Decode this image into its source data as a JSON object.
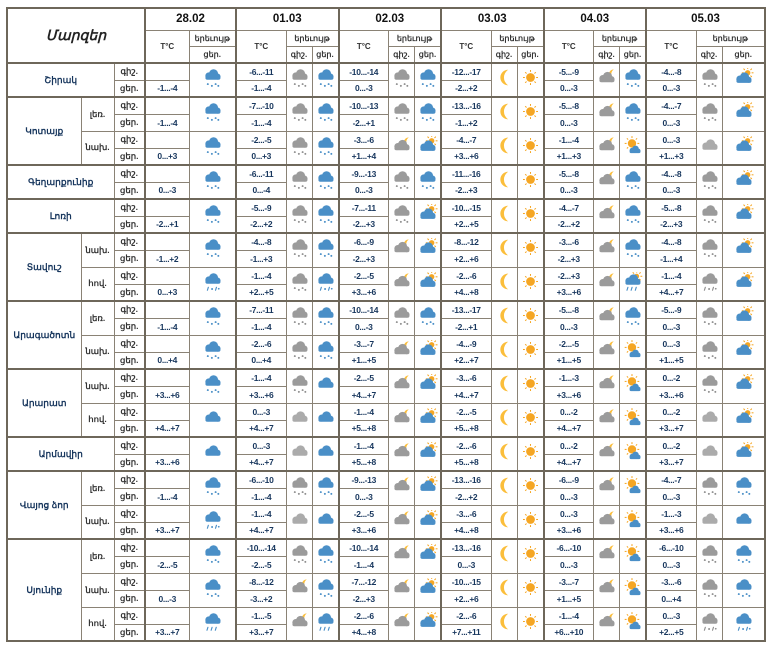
{
  "header": {
    "regions_label": "Մարզեր",
    "temp_label": "T°C",
    "phenomenon_label": "երեւույթ",
    "night_label": "գիշ.",
    "day_label": "ցեր.",
    "dates": [
      "28.02",
      "01.03",
      "02.03",
      "03.03",
      "04.03",
      "05.03"
    ]
  },
  "colors": {
    "border": "#8a8275",
    "border_heavy": "#6e675a",
    "temp_text": "#17365d",
    "cloud_blue": "#4A8FC7",
    "cloud_gray": "#9B9B9B",
    "sun_yellow": "#F5A623",
    "moon_yellow": "#FBBE3B"
  },
  "table": {
    "rows": [
      {
        "region": "Շիրակ",
        "zone": "",
        "dates": [
          {
            "t_night": "",
            "t_day": "-1...-4",
            "icon_night": "",
            "icon_day": "snow_blue"
          },
          {
            "t_night": "-6...-11",
            "t_day": "-1...-4",
            "icon_night": "snow_gray",
            "icon_day": "snow_blue"
          },
          {
            "t_night": "-10...-14",
            "t_day": "0...-3",
            "icon_night": "snow_gray",
            "icon_day": "snow_blue"
          },
          {
            "t_night": "-12...-17",
            "t_day": "-2...+2",
            "icon_night": "moon",
            "icon_day": "sun"
          },
          {
            "t_night": "-5...-9",
            "t_day": "0...-3",
            "icon_night": "cloud_moon",
            "icon_day": "snow_blue"
          },
          {
            "t_night": "-4...-8",
            "t_day": "0...-3",
            "icon_night": "snow_gray",
            "icon_day": "cloud_sun"
          }
        ]
      },
      {
        "region": "Կոտայք",
        "zone": "լեռ.",
        "dates": [
          {
            "t_night": "",
            "t_day": "-1...-4",
            "icon_night": "",
            "icon_day": "snow_blue"
          },
          {
            "t_night": "-7...-10",
            "t_day": "-1...-4",
            "icon_night": "snow_gray",
            "icon_day": "snow_blue"
          },
          {
            "t_night": "-10...-13",
            "t_day": "-2...+1",
            "icon_night": "snow_gray",
            "icon_day": "snow_blue"
          },
          {
            "t_night": "-13...-16",
            "t_day": "-1...+2",
            "icon_night": "moon",
            "icon_day": "sun"
          },
          {
            "t_night": "-5...-8",
            "t_day": "0...-3",
            "icon_night": "cloud_moon",
            "icon_day": "snow_blue"
          },
          {
            "t_night": "-4...-7",
            "t_day": "0...-3",
            "icon_night": "snow_gray",
            "icon_day": "cloud_sun"
          }
        ]
      },
      {
        "region": "Կոտայք",
        "zone": "նախ.",
        "dates": [
          {
            "t_night": "",
            "t_day": "0...+3",
            "icon_night": "",
            "icon_day": "snow_blue"
          },
          {
            "t_night": "-2...-5",
            "t_day": "0...+3",
            "icon_night": "snow_gray",
            "icon_day": "snow_blue"
          },
          {
            "t_night": "-3...-6",
            "t_day": "+1...+4",
            "icon_night": "cloud_moon",
            "icon_day": "cloud_sun"
          },
          {
            "t_night": "-4...-7",
            "t_day": "+3...+6",
            "icon_night": "moon",
            "icon_day": "sun"
          },
          {
            "t_night": "-1...-4",
            "t_day": "+1...+3",
            "icon_night": "cloud_moon",
            "icon_day": "sun_cloud"
          },
          {
            "t_night": "0...-3",
            "t_day": "+1...+3",
            "icon_night": "cloud_gray",
            "icon_day": "cloud_sun"
          }
        ]
      },
      {
        "region": "Գեղարքունիք",
        "zone": "",
        "dates": [
          {
            "t_night": "",
            "t_day": "0...-3",
            "icon_night": "",
            "icon_day": "snow_blue"
          },
          {
            "t_night": "-6...-11",
            "t_day": "0...-4",
            "icon_night": "snow_gray",
            "icon_day": "snow_blue"
          },
          {
            "t_night": "-9...-13",
            "t_day": "0...-3",
            "icon_night": "snow_gray",
            "icon_day": "snow_blue"
          },
          {
            "t_night": "-11...-16",
            "t_day": "-2...+3",
            "icon_night": "moon",
            "icon_day": "sun"
          },
          {
            "t_night": "-5...-8",
            "t_day": "0...-3",
            "icon_night": "cloud_moon",
            "icon_day": "snow_blue"
          },
          {
            "t_night": "-4...-8",
            "t_day": "0...-3",
            "icon_night": "snow_gray",
            "icon_day": "cloud_sun"
          }
        ]
      },
      {
        "region": "Լոռի",
        "zone": "",
        "dates": [
          {
            "t_night": "",
            "t_day": "-2...+1",
            "icon_night": "",
            "icon_day": "snow_blue"
          },
          {
            "t_night": "-5...-9",
            "t_day": "-2...+2",
            "icon_night": "snow_gray",
            "icon_day": "snow_blue"
          },
          {
            "t_night": "-7...-11",
            "t_day": "-2...+3",
            "icon_night": "snow_gray",
            "icon_day": "cloud_sun"
          },
          {
            "t_night": "-10...-15",
            "t_day": "+2...+5",
            "icon_night": "moon",
            "icon_day": "sun"
          },
          {
            "t_night": "-4...-7",
            "t_day": "-2...+2",
            "icon_night": "cloud_moon",
            "icon_day": "snow_blue"
          },
          {
            "t_night": "-5...-8",
            "t_day": "-2...+3",
            "icon_night": "snow_gray",
            "icon_day": "cloud_sun"
          }
        ]
      },
      {
        "region": "Տավուշ",
        "zone": "նախ.",
        "dates": [
          {
            "t_night": "",
            "t_day": "-1...+2",
            "icon_night": "",
            "icon_day": "snow_blue"
          },
          {
            "t_night": "-4...-8",
            "t_day": "-1...+3",
            "icon_night": "snow_gray",
            "icon_day": "snow_blue"
          },
          {
            "t_night": "-6...-9",
            "t_day": "-2...+3",
            "icon_night": "cloud_moon",
            "icon_day": "cloud_sun"
          },
          {
            "t_night": "-8...-12",
            "t_day": "+2...+6",
            "icon_night": "moon",
            "icon_day": "sun"
          },
          {
            "t_night": "-3...-6",
            "t_day": "-2...+3",
            "icon_night": "cloud_moon",
            "icon_day": "snow_blue"
          },
          {
            "t_night": "-4...-8",
            "t_day": "-1...+4",
            "icon_night": "snow_gray",
            "icon_day": "cloud_sun"
          }
        ]
      },
      {
        "region": "Տավուշ",
        "zone": "հով.",
        "dates": [
          {
            "t_night": "",
            "t_day": "0...+3",
            "icon_night": "",
            "icon_day": "sleet_blue"
          },
          {
            "t_night": "-1...-4",
            "t_day": "+2...+5",
            "icon_night": "snow_gray",
            "icon_day": "sleet_blue"
          },
          {
            "t_night": "-2...-5",
            "t_day": "+3...+6",
            "icon_night": "cloud_moon",
            "icon_day": "cloud_sun"
          },
          {
            "t_night": "-2...-6",
            "t_day": "+4...+8",
            "icon_night": "moon",
            "icon_day": "sun"
          },
          {
            "t_night": "-2...+3",
            "t_day": "+3...+6",
            "icon_night": "cloud_moon",
            "icon_day": "cloud_sun_sleet"
          },
          {
            "t_night": "-1...-4",
            "t_day": "+4...+7",
            "icon_night": "sleet_gray",
            "icon_day": "cloud_sun"
          }
        ]
      },
      {
        "region": "Արագածոտն",
        "zone": "լեռ.",
        "dates": [
          {
            "t_night": "",
            "t_day": "-1...-4",
            "icon_night": "",
            "icon_day": "snow_blue"
          },
          {
            "t_night": "-7...-11",
            "t_day": "-1...-4",
            "icon_night": "snow_gray",
            "icon_day": "snow_blue"
          },
          {
            "t_night": "-10...-14",
            "t_day": "0...-3",
            "icon_night": "snow_gray",
            "icon_day": "snow_blue"
          },
          {
            "t_night": "-13...-17",
            "t_day": "-2...+1",
            "icon_night": "moon",
            "icon_day": "sun"
          },
          {
            "t_night": "-5...-8",
            "t_day": "0...-3",
            "icon_night": "cloud_moon",
            "icon_day": "snow_blue"
          },
          {
            "t_night": "-5...-9",
            "t_day": "0...-3",
            "icon_night": "snow_gray",
            "icon_day": "cloud_sun"
          }
        ]
      },
      {
        "region": "Արագածոտն",
        "zone": "նախ.",
        "dates": [
          {
            "t_night": "",
            "t_day": "0...+4",
            "icon_night": "",
            "icon_day": "snow_blue"
          },
          {
            "t_night": "-2...-6",
            "t_day": "0...+4",
            "icon_night": "snow_gray",
            "icon_day": "snow_blue"
          },
          {
            "t_night": "-3...-7",
            "t_day": "+1...+5",
            "icon_night": "cloud_moon",
            "icon_day": "cloud_sun"
          },
          {
            "t_night": "-4...-9",
            "t_day": "+2...+7",
            "icon_night": "moon",
            "icon_day": "sun"
          },
          {
            "t_night": "-2...-5",
            "t_day": "+1...+5",
            "icon_night": "cloud_moon",
            "icon_day": "sun_cloud"
          },
          {
            "t_night": "0...-3",
            "t_day": "+1...+5",
            "icon_night": "snow_gray",
            "icon_day": "cloud_sun"
          }
        ]
      },
      {
        "region": "Արարատ",
        "zone": "նախ.",
        "dates": [
          {
            "t_night": "",
            "t_day": "+3...+6",
            "icon_night": "",
            "icon_day": "snow_blue"
          },
          {
            "t_night": "-1...-4",
            "t_day": "+3...+6",
            "icon_night": "snow_gray",
            "icon_day": "cloud_blue"
          },
          {
            "t_night": "-2...-5",
            "t_day": "+4...+7",
            "icon_night": "cloud_moon",
            "icon_day": "cloud_sun"
          },
          {
            "t_night": "-3...-6",
            "t_day": "+4...+7",
            "icon_night": "moon",
            "icon_day": "sun"
          },
          {
            "t_night": "-1...-3",
            "t_day": "+3...+6",
            "icon_night": "cloud_moon",
            "icon_day": "sun_cloud"
          },
          {
            "t_night": "0...-2",
            "t_day": "+3...+6",
            "icon_night": "snow_gray",
            "icon_day": "cloud_sun"
          }
        ]
      },
      {
        "region": "Արարատ",
        "zone": "հով.",
        "dates": [
          {
            "t_night": "",
            "t_day": "+4...+7",
            "icon_night": "",
            "icon_day": "cloud_blue"
          },
          {
            "t_night": "0...-3",
            "t_day": "+4...+7",
            "icon_night": "cloud_gray",
            "icon_day": "cloud_blue"
          },
          {
            "t_night": "-1...-4",
            "t_day": "+5...+8",
            "icon_night": "cloud_moon",
            "icon_day": "cloud_sun"
          },
          {
            "t_night": "-2...-5",
            "t_day": "+5...+8",
            "icon_night": "moon",
            "icon_day": "sun"
          },
          {
            "t_night": "0...-2",
            "t_day": "+4...+7",
            "icon_night": "cloud_moon",
            "icon_day": "sun_cloud"
          },
          {
            "t_night": "0...-2",
            "t_day": "+3...+7",
            "icon_night": "cloud_gray",
            "icon_day": "cloud_sun"
          }
        ]
      },
      {
        "region": "Արմավիր",
        "zone": "",
        "dates": [
          {
            "t_night": "",
            "t_day": "+3...+6",
            "icon_night": "",
            "icon_day": "cloud_blue"
          },
          {
            "t_night": "0...-3",
            "t_day": "+4...+7",
            "icon_night": "cloud_gray",
            "icon_day": "cloud_blue"
          },
          {
            "t_night": "-1...-4",
            "t_day": "+5...+8",
            "icon_night": "cloud_moon",
            "icon_day": "cloud_sun"
          },
          {
            "t_night": "-2...-6",
            "t_day": "+5...+8",
            "icon_night": "moon",
            "icon_day": "sun"
          },
          {
            "t_night": "0...-2",
            "t_day": "+4...+7",
            "icon_night": "cloud_moon",
            "icon_day": "sun_cloud"
          },
          {
            "t_night": "0...-2",
            "t_day": "+3...+7",
            "icon_night": "cloud_gray",
            "icon_day": "cloud_sun"
          }
        ]
      },
      {
        "region": "Վայոց ձոր",
        "zone": "լեռ.",
        "dates": [
          {
            "t_night": "",
            "t_day": "-1...-4",
            "icon_night": "",
            "icon_day": "snow_blue"
          },
          {
            "t_night": "-6...-10",
            "t_day": "-1...-4",
            "icon_night": "snow_gray",
            "icon_day": "snow_blue"
          },
          {
            "t_night": "-9...-13",
            "t_day": "0...-3",
            "icon_night": "cloud_moon",
            "icon_day": "cloud_sun"
          },
          {
            "t_night": "-13...-16",
            "t_day": "-2...+2",
            "icon_night": "moon",
            "icon_day": "sun"
          },
          {
            "t_night": "-6...-9",
            "t_day": "0...-3",
            "icon_night": "cloud_moon",
            "icon_day": "sun_cloud"
          },
          {
            "t_night": "-4...-7",
            "t_day": "0...-3",
            "icon_night": "snow_gray",
            "icon_day": "snow_blue"
          }
        ]
      },
      {
        "region": "Վայոց ձոր",
        "zone": "նախ.",
        "dates": [
          {
            "t_night": "",
            "t_day": "+3...+7",
            "icon_night": "",
            "icon_day": "sleet_blue"
          },
          {
            "t_night": "-1...-4",
            "t_day": "+4...+7",
            "icon_night": "cloud_gray",
            "icon_day": "cloud_blue"
          },
          {
            "t_night": "-2...-5",
            "t_day": "+3...+6",
            "icon_night": "cloud_moon",
            "icon_day": "cloud_sun"
          },
          {
            "t_night": "-3...-6",
            "t_day": "+4...+8",
            "icon_night": "moon",
            "icon_day": "sun"
          },
          {
            "t_night": "0...-3",
            "t_day": "+3...+6",
            "icon_night": "cloud_moon",
            "icon_day": "sun_cloud"
          },
          {
            "t_night": "-1...-3",
            "t_day": "+3...+6",
            "icon_night": "cloud_gray",
            "icon_day": "cloud_blue"
          }
        ]
      },
      {
        "region": "Սյունիք",
        "zone": "լեռ.",
        "dates": [
          {
            "t_night": "",
            "t_day": "-2...-5",
            "icon_night": "",
            "icon_day": "snow_blue"
          },
          {
            "t_night": "-10...-14",
            "t_day": "-2...-5",
            "icon_night": "snow_gray",
            "icon_day": "snow_blue"
          },
          {
            "t_night": "-10...-14",
            "t_day": "-1...-4",
            "icon_night": "cloud_moon",
            "icon_day": "cloud_sun"
          },
          {
            "t_night": "-13...-16",
            "t_day": "0...-3",
            "icon_night": "moon",
            "icon_day": "sun"
          },
          {
            "t_night": "-6...-10",
            "t_day": "0...-3",
            "icon_night": "cloud_moon",
            "icon_day": "sun_cloud"
          },
          {
            "t_night": "-6...-10",
            "t_day": "0...-3",
            "icon_night": "snow_gray",
            "icon_day": "snow_blue"
          }
        ]
      },
      {
        "region": "Սյունիք",
        "zone": "նախ.",
        "dates": [
          {
            "t_night": "",
            "t_day": "0...-3",
            "icon_night": "",
            "icon_day": "snow_blue"
          },
          {
            "t_night": "-8...-12",
            "t_day": "-3...+2",
            "icon_night": "cloud_moon",
            "icon_day": "snow_blue"
          },
          {
            "t_night": "-7...-12",
            "t_day": "-2...+3",
            "icon_night": "cloud_moon",
            "icon_day": "cloud_sun"
          },
          {
            "t_night": "-10...-15",
            "t_day": "+2...+6",
            "icon_night": "moon",
            "icon_day": "sun"
          },
          {
            "t_night": "-3...-7",
            "t_day": "+1...+5",
            "icon_night": "cloud_moon",
            "icon_day": "sun_cloud"
          },
          {
            "t_night": "-3...-6",
            "t_day": "0...+4",
            "icon_night": "snow_gray",
            "icon_day": "snow_blue"
          }
        ]
      },
      {
        "region": "Սյունիք",
        "zone": "հով.",
        "dates": [
          {
            "t_night": "",
            "t_day": "+3...+7",
            "icon_night": "",
            "icon_day": "rain_blue"
          },
          {
            "t_night": "-1...-5",
            "t_day": "+3...+7",
            "icon_night": "cloud_moon",
            "icon_day": "rain_blue"
          },
          {
            "t_night": "-2...-6",
            "t_day": "+4...+8",
            "icon_night": "cloud_moon",
            "icon_day": "cloud_sun"
          },
          {
            "t_night": "-2...-6",
            "t_day": "+7...+11",
            "icon_night": "moon",
            "icon_day": "sun"
          },
          {
            "t_night": "-1...-4",
            "t_day": "+6...+10",
            "icon_night": "cloud_moon",
            "icon_day": "sun_cloud"
          },
          {
            "t_night": "0...-3",
            "t_day": "+2...+5",
            "icon_night": "sleet_gray",
            "icon_day": "sleet_blue"
          }
        ]
      }
    ]
  }
}
